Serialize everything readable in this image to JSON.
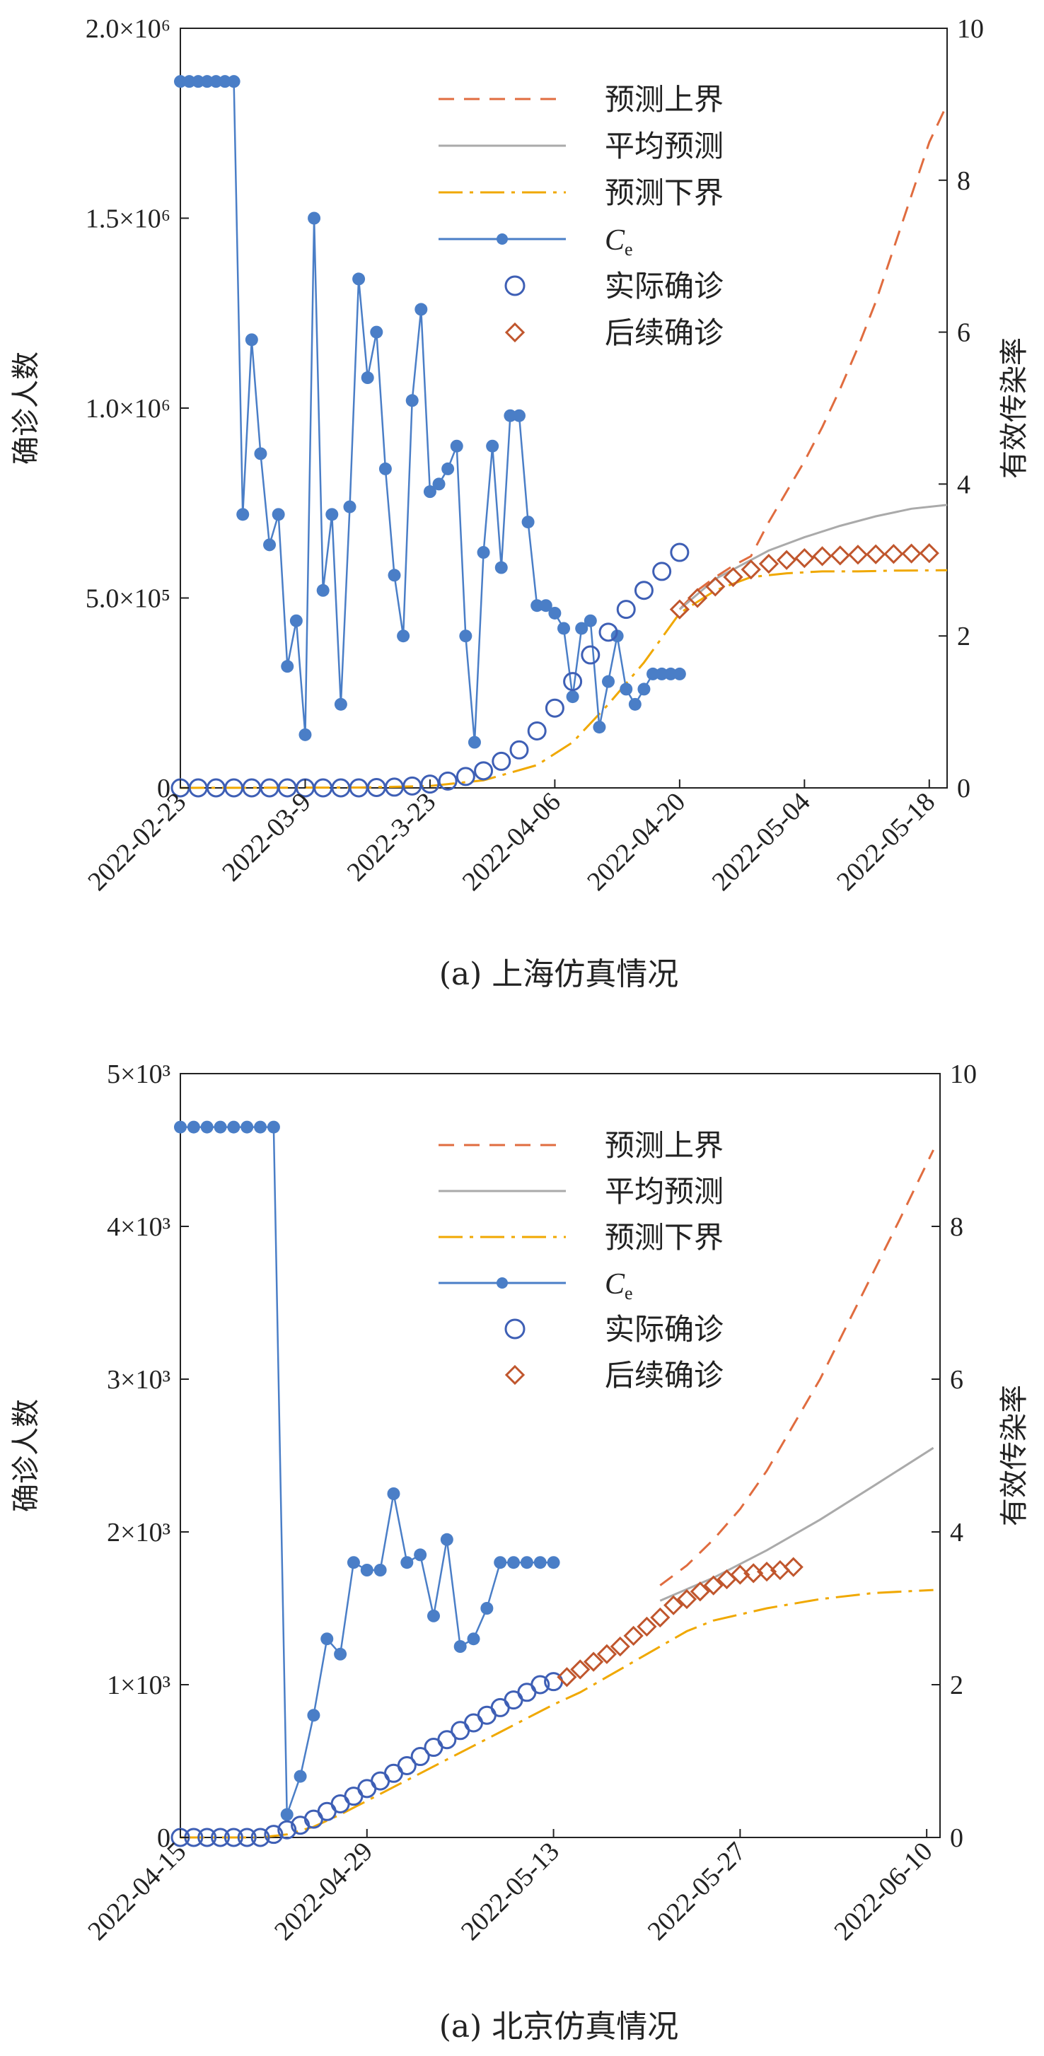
{
  "colors": {
    "upper": "#E06C3F",
    "mean": "#AAAAAA",
    "lower": "#F0A800",
    "ce": "#4A7EC7",
    "actual": "#3E5FB5",
    "followup": "#C0562D",
    "axis": "#222222"
  },
  "chart_data": [
    {
      "type": "line",
      "caption": "(a) 上海仿真情况",
      "ylabel_left": "确诊人数",
      "ylabel_right": "有效传染率",
      "x_start": "2022-02-23",
      "x_end_day": 86,
      "ylim_left": [
        0,
        2000000
      ],
      "ylim_right": [
        0,
        10
      ],
      "left_ticks": [
        {
          "value": 0,
          "label": "0"
        },
        {
          "value": 500000,
          "label": "5.0×10⁵"
        },
        {
          "value": 1000000,
          "label": "1.0×10⁶"
        },
        {
          "value": 1500000,
          "label": "1.5×10⁶"
        },
        {
          "value": 2000000,
          "label": "2.0×10⁶"
        }
      ],
      "right_ticks": [
        {
          "value": 0,
          "label": "0"
        },
        {
          "value": 2,
          "label": "2"
        },
        {
          "value": 4,
          "label": "4"
        },
        {
          "value": 6,
          "label": "6"
        },
        {
          "value": 8,
          "label": "8"
        },
        {
          "value": 10,
          "label": "10"
        }
      ],
      "x_ticks": [
        {
          "day": 0,
          "label": "2022-02-23"
        },
        {
          "day": 14,
          "label": "2022-03-9"
        },
        {
          "day": 28,
          "label": "2022-3-23"
        },
        {
          "day": 42,
          "label": "2022-04-06"
        },
        {
          "day": 56,
          "label": "2022-04-20"
        },
        {
          "day": 70,
          "label": "2022-05-04"
        },
        {
          "day": 84,
          "label": "2022-05-18"
        }
      ],
      "legend": {
        "placement": "top-center",
        "upper": "预测上界",
        "mean": "平均预测",
        "lower": "预测下界",
        "ce_main": "C",
        "ce_sub": "e",
        "actual": "实际确诊",
        "followup": "后续确诊"
      },
      "series": [
        {
          "name": "预测上界",
          "axis": "left",
          "style": "dashed",
          "x": [
            56,
            58,
            60,
            62,
            64,
            66,
            68,
            70,
            72,
            74,
            76,
            78,
            80,
            82,
            84,
            86
          ],
          "y": [
            470000,
            520000,
            555000,
            585000,
            610000,
            700000,
            780000,
            860000,
            950000,
            1050000,
            1160000,
            1280000,
            1420000,
            1560000,
            1700000,
            1800000
          ]
        },
        {
          "name": "平均预测",
          "axis": "left",
          "style": "solid",
          "x": [
            56,
            60,
            64,
            66,
            70,
            74,
            78,
            82,
            86
          ],
          "y": [
            470000,
            550000,
            600000,
            625000,
            660000,
            690000,
            715000,
            735000,
            745000
          ]
        },
        {
          "name": "预测下界",
          "axis": "left",
          "style": "dashdot",
          "x": [
            0,
            20,
            28,
            34,
            40,
            44,
            48,
            52,
            56,
            60,
            64,
            68,
            72,
            76,
            80,
            86
          ],
          "y": [
            0,
            1000,
            5000,
            20000,
            60000,
            120000,
            220000,
            330000,
            460000,
            520000,
            555000,
            565000,
            570000,
            570000,
            572000,
            573000
          ]
        },
        {
          "name": "Ce",
          "axis": "right",
          "style": "line-marker",
          "x": [
            0,
            1,
            2,
            3,
            4,
            5,
            6,
            7,
            8,
            9,
            10,
            11,
            12,
            13,
            14,
            15,
            16,
            17,
            18,
            19,
            20,
            21,
            22,
            23,
            24,
            25,
            26,
            27,
            28,
            29,
            30,
            31,
            32,
            33,
            34,
            35,
            36,
            37,
            38,
            39,
            40,
            41,
            42,
            43,
            44,
            45,
            46,
            47,
            48,
            49,
            50,
            51,
            52,
            53,
            54,
            55,
            56
          ],
          "y": [
            9.3,
            9.3,
            9.3,
            9.3,
            9.3,
            9.3,
            9.3,
            3.6,
            5.9,
            4.4,
            3.2,
            3.6,
            1.6,
            2.2,
            0.7,
            7.5,
            2.6,
            3.6,
            1.1,
            3.7,
            6.7,
            5.4,
            6.0,
            4.2,
            2.8,
            2.0,
            5.1,
            6.3,
            3.9,
            4.0,
            4.2,
            4.5,
            2.0,
            0.6,
            3.1,
            4.5,
            2.9,
            4.9,
            4.9,
            3.5,
            2.4,
            2.4,
            2.3,
            2.1,
            1.2,
            2.1,
            2.2,
            0.8,
            1.4,
            2.0,
            1.3,
            1.1,
            1.3,
            1.5,
            1.5,
            1.5,
            1.5
          ]
        },
        {
          "name": "实际确诊",
          "axis": "left",
          "style": "circle",
          "x": [
            0,
            2,
            4,
            6,
            8,
            10,
            12,
            14,
            16,
            18,
            20,
            22,
            24,
            26,
            28,
            30,
            32,
            34,
            36,
            38,
            40,
            42,
            44,
            46,
            48,
            50,
            52,
            54,
            56
          ],
          "y": [
            0,
            0,
            0,
            0,
            0,
            0,
            0,
            0,
            0,
            0,
            0,
            1000,
            2000,
            5000,
            10000,
            18000,
            30000,
            45000,
            70000,
            100000,
            150000,
            210000,
            280000,
            350000,
            410000,
            470000,
            520000,
            570000,
            620000
          ]
        },
        {
          "name": "后续确诊",
          "axis": "left",
          "style": "diamond",
          "x": [
            56,
            58,
            60,
            62,
            64,
            66,
            68,
            70,
            72,
            74,
            76,
            78,
            80,
            82,
            84
          ],
          "y": [
            470000,
            500000,
            530000,
            555000,
            575000,
            590000,
            600000,
            605000,
            610000,
            612000,
            614000,
            615000,
            616000,
            617000,
            618000
          ]
        }
      ]
    },
    {
      "type": "line",
      "caption": "(a) 北京仿真情况",
      "ylabel_left": "确诊人数",
      "ylabel_right": "有效传染率",
      "x_start": "2022-04-15",
      "x_end_day": 57,
      "ylim_left": [
        0,
        5000
      ],
      "ylim_right": [
        0,
        10
      ],
      "left_ticks": [
        {
          "value": 0,
          "label": "0"
        },
        {
          "value": 1000,
          "label": "1×10³"
        },
        {
          "value": 2000,
          "label": "2×10³"
        },
        {
          "value": 3000,
          "label": "3×10³"
        },
        {
          "value": 4000,
          "label": "4×10³"
        },
        {
          "value": 5000,
          "label": "5×10³"
        }
      ],
      "right_ticks": [
        {
          "value": 0,
          "label": "0"
        },
        {
          "value": 2,
          "label": "2"
        },
        {
          "value": 4,
          "label": "4"
        },
        {
          "value": 6,
          "label": "6"
        },
        {
          "value": 8,
          "label": "8"
        },
        {
          "value": 10,
          "label": "10"
        }
      ],
      "x_ticks": [
        {
          "day": 0,
          "label": "2022-04-15"
        },
        {
          "day": 14,
          "label": "2022-04-29"
        },
        {
          "day": 28,
          "label": "2022-05-13"
        },
        {
          "day": 42,
          "label": "2022-05-27"
        },
        {
          "day": 56,
          "label": "2022-06-10"
        }
      ],
      "legend": {
        "placement": "top-center",
        "upper": "预测上界",
        "mean": "平均预测",
        "lower": "预测下界",
        "ce_main": "C",
        "ce_sub": "e",
        "actual": "实际确诊",
        "followup": "后续确诊"
      },
      "series": [
        {
          "name": "预测上界",
          "axis": "left",
          "style": "dashed",
          "x": [
            36,
            38,
            40,
            42,
            44,
            46,
            48,
            50,
            52,
            54,
            56.5
          ],
          "y": [
            1650,
            1780,
            1950,
            2150,
            2400,
            2700,
            3000,
            3350,
            3700,
            4050,
            4500
          ]
        },
        {
          "name": "平均预测",
          "axis": "left",
          "style": "solid",
          "x": [
            36,
            40,
            44,
            48,
            52,
            56.5
          ],
          "y": [
            1550,
            1700,
            1880,
            2080,
            2300,
            2550
          ]
        },
        {
          "name": "预测下界",
          "axis": "left",
          "style": "dashdot",
          "x": [
            0,
            6,
            8,
            10,
            12,
            14,
            16,
            18,
            20,
            22,
            24,
            26,
            28,
            30,
            32,
            34,
            36,
            38,
            40,
            44,
            48,
            52,
            56.5
          ],
          "y": [
            0,
            0,
            20,
            70,
            150,
            240,
            330,
            420,
            510,
            600,
            690,
            780,
            870,
            950,
            1050,
            1150,
            1250,
            1350,
            1420,
            1500,
            1560,
            1600,
            1620
          ]
        },
        {
          "name": "Ce",
          "axis": "right",
          "style": "line-marker",
          "x": [
            0,
            1,
            2,
            3,
            4,
            5,
            6,
            7,
            8,
            9,
            10,
            11,
            12,
            13,
            14,
            15,
            16,
            17,
            18,
            19,
            20,
            21,
            22,
            23,
            24,
            25,
            26,
            27,
            28
          ],
          "y": [
            9.3,
            9.3,
            9.3,
            9.3,
            9.3,
            9.3,
            9.3,
            9.3,
            0.3,
            0.8,
            1.6,
            2.6,
            2.4,
            3.6,
            3.5,
            3.5,
            4.5,
            3.6,
            3.7,
            2.9,
            3.9,
            2.5,
            2.6,
            3.0,
            3.6,
            3.6,
            3.6,
            3.6,
            3.6
          ]
        },
        {
          "name": "实际确诊",
          "axis": "left",
          "style": "circle",
          "x": [
            0,
            1,
            2,
            3,
            4,
            5,
            6,
            7,
            8,
            9,
            10,
            11,
            12,
            13,
            14,
            15,
            16,
            17,
            18,
            19,
            20,
            21,
            22,
            23,
            24,
            25,
            26,
            27,
            28
          ],
          "y": [
            0,
            0,
            0,
            0,
            0,
            0,
            0,
            20,
            50,
            80,
            120,
            170,
            220,
            270,
            320,
            370,
            420,
            470,
            530,
            590,
            640,
            700,
            750,
            800,
            850,
            900,
            950,
            1000,
            1020
          ]
        },
        {
          "name": "后续确诊",
          "axis": "left",
          "style": "diamond",
          "x": [
            29,
            30,
            31,
            32,
            33,
            34,
            35,
            36,
            37,
            38,
            39,
            40,
            41,
            42,
            43,
            44,
            45,
            46
          ],
          "y": [
            1050,
            1100,
            1150,
            1200,
            1250,
            1320,
            1380,
            1440,
            1520,
            1560,
            1610,
            1650,
            1690,
            1720,
            1730,
            1740,
            1750,
            1770
          ]
        }
      ]
    }
  ]
}
